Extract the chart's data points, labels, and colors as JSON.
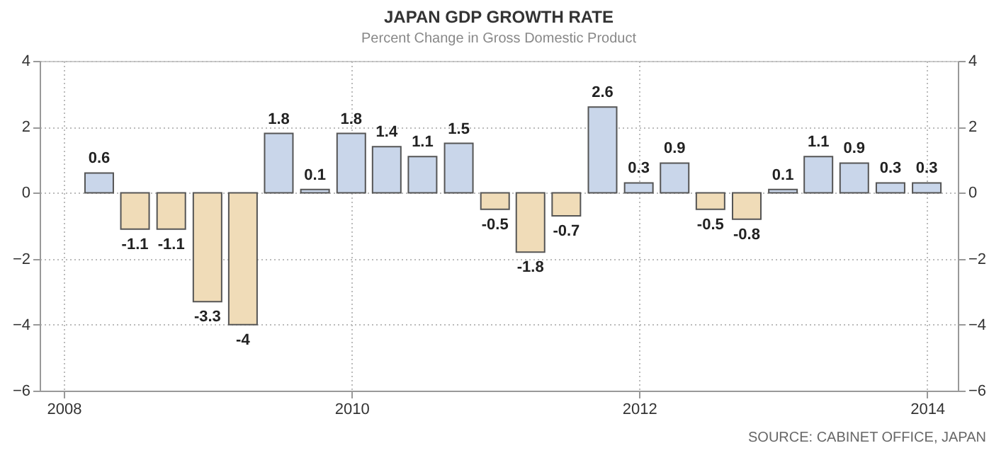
{
  "chart_data": {
    "type": "bar",
    "title": "JAPAN GDP GROWTH RATE",
    "subtitle": "Percent Change in Gross Domestic Product",
    "x": [
      "2008-03-31",
      "2008-06-30",
      "2008-09-30",
      "2008-12-31",
      "2009-03-31",
      "2009-06-30",
      "2009-09-30",
      "2009-12-31",
      "2010-03-31",
      "2010-06-30",
      "2010-09-30",
      "2010-12-31",
      "2011-03-31",
      "2011-06-30",
      "2011-09-30",
      "2011-12-31",
      "2012-03-31",
      "2012-06-30",
      "2012-09-30",
      "2012-12-31",
      "2013-03-31",
      "2013-06-30",
      "2013-09-30",
      "2013-12-31"
    ],
    "values": [
      0.6,
      -1.1,
      -1.1,
      -3.3,
      -4,
      1.8,
      0.1,
      1.8,
      1.4,
      1.1,
      1.5,
      -0.5,
      -1.8,
      -0.7,
      2.6,
      0.3,
      0.9,
      -0.5,
      -0.8,
      0.1,
      1.1,
      0.9,
      0.3,
      0.3
    ],
    "colors": [
      "#c9d6ea",
      "#f0dcb8",
      "#f0dcb8",
      "#f0dcb8",
      "#f0dcb8",
      "#c9d6ea",
      "#c9d6ea",
      "#c9d6ea",
      "#c9d6ea",
      "#c9d6ea",
      "#c9d6ea",
      "#f0dcb8",
      "#f0dcb8",
      "#f0dcb8",
      "#c9d6ea",
      "#c9d6ea",
      "#c9d6ea",
      "#f0dcb8",
      "#f0dcb8",
      "#c9d6ea",
      "#c9d6ea",
      "#c9d6ea",
      "#c9d6ea",
      "#c9d6ea"
    ],
    "xlim": [
      "2007-11-01",
      "2014-03-20"
    ],
    "xticks": [
      "2008",
      "2010",
      "2012",
      "2014"
    ],
    "ylim": [
      -6,
      4
    ],
    "yticks": [
      -6,
      -4,
      -2,
      0,
      2,
      4
    ],
    "y2lim": [
      -6,
      4
    ],
    "y2ticks": [
      -6,
      -4,
      -2,
      0,
      2,
      4
    ],
    "data_labels": true,
    "grid": true,
    "legend": false,
    "annotations": [
      "SOURCE: CABINET OFFICE, JAPAN"
    ]
  }
}
